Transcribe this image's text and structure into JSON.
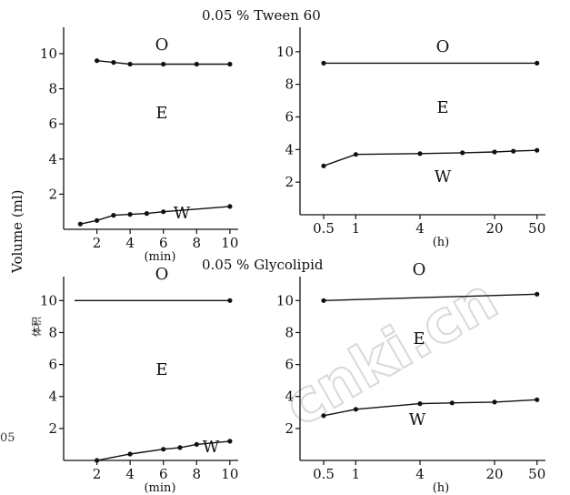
{
  "figure": {
    "title_top": "0.05 % Tween  60",
    "title_bottom": "0.05 % Glycolipid",
    "ylabel": "Volume (ml)",
    "ylabel_cjk": "体积",
    "watermark": "cnki.cn",
    "left_edge_text": "05"
  },
  "chart_data": [
    {
      "type": "line",
      "title": "0.05 % Tween  60",
      "xlabel": "(min)",
      "ylabel": "Volume (ml)",
      "xlim": [
        0,
        10.5
      ],
      "ylim": [
        0,
        11.5
      ],
      "xticks": [
        2,
        4,
        6,
        8,
        10
      ],
      "yticks": [
        2,
        4,
        6,
        8,
        10
      ],
      "region_labels": [
        "O",
        "E",
        "W"
      ],
      "series": [
        {
          "name": "O",
          "x": [
            2,
            3,
            4,
            6,
            8,
            10
          ],
          "y": [
            9.6,
            9.5,
            9.4,
            9.4,
            9.4,
            9.4
          ]
        },
        {
          "name": "W",
          "x": [
            1,
            2,
            3,
            4,
            5,
            6,
            10
          ],
          "y": [
            0.3,
            0.5,
            0.8,
            0.85,
            0.9,
            1.0,
            1.3
          ]
        }
      ]
    },
    {
      "type": "line",
      "title": "",
      "xlabel": "(h)",
      "ylabel": "",
      "xscale": "log",
      "xlim": [
        0.3,
        60
      ],
      "ylim": [
        0,
        11.5
      ],
      "xticks": [
        0.5,
        1,
        4,
        20,
        50
      ],
      "yticks": [
        2,
        4,
        6,
        8,
        10
      ],
      "region_labels": [
        "O",
        "E",
        "W"
      ],
      "series": [
        {
          "name": "O",
          "x": [
            0.5,
            50
          ],
          "y": [
            9.3,
            9.3
          ]
        },
        {
          "name": "W",
          "x": [
            0.5,
            1,
            4,
            10,
            20,
            30,
            50
          ],
          "y": [
            3.0,
            3.7,
            3.75,
            3.8,
            3.85,
            3.9,
            3.95
          ]
        }
      ]
    },
    {
      "type": "line",
      "title": "0.05 % Glycolipid",
      "xlabel": "(min)",
      "ylabel": "",
      "xlim": [
        0,
        10.5
      ],
      "ylim": [
        0,
        11.5
      ],
      "xticks": [
        2,
        4,
        6,
        8,
        10
      ],
      "yticks": [
        2,
        4,
        6,
        8,
        10
      ],
      "region_labels": [
        "O",
        "E",
        "W"
      ],
      "series": [
        {
          "name": "O",
          "x": [
            10
          ],
          "y": [
            10.0
          ]
        },
        {
          "name": "W",
          "x": [
            2,
            4,
            6,
            7,
            8,
            10
          ],
          "y": [
            0.0,
            0.4,
            0.7,
            0.8,
            1.0,
            1.2
          ]
        }
      ]
    },
    {
      "type": "line",
      "title": "",
      "xlabel": "(h)",
      "ylabel": "",
      "xscale": "log",
      "xlim": [
        0.3,
        60
      ],
      "ylim": [
        0,
        11.5
      ],
      "xticks": [
        0.5,
        1,
        4,
        20,
        50
      ],
      "yticks": [
        2,
        4,
        6,
        8,
        10
      ],
      "region_labels": [
        "O",
        "E",
        "W"
      ],
      "series": [
        {
          "name": "O",
          "x": [
            0.5,
            50
          ],
          "y": [
            10.0,
            10.4
          ]
        },
        {
          "name": "W",
          "x": [
            0.5,
            1,
            4,
            8,
            20,
            50
          ],
          "y": [
            2.8,
            3.2,
            3.55,
            3.6,
            3.65,
            3.8
          ]
        }
      ]
    }
  ]
}
